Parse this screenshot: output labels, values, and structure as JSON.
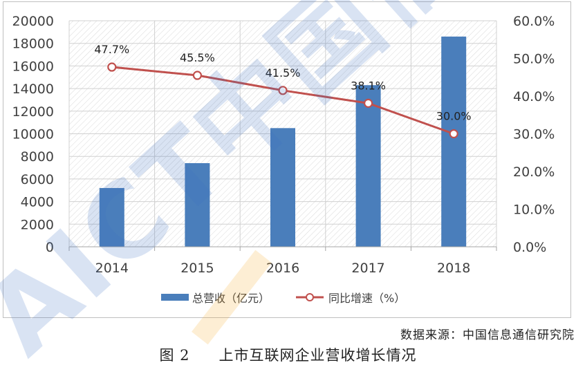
{
  "chart_data": {
    "type": "bar+line",
    "categories": [
      "2014",
      "2015",
      "2016",
      "2017",
      "2018"
    ],
    "series": [
      {
        "name": "总营收（亿元）",
        "type": "bar",
        "axis": "left",
        "values": [
          5200,
          7400,
          10500,
          14300,
          18600
        ]
      },
      {
        "name": "同比增速（%）",
        "type": "line",
        "axis": "right",
        "values": [
          47.7,
          45.5,
          41.5,
          38.1,
          30.0
        ],
        "labels": [
          "47.7%",
          "45.5%",
          "41.5%",
          "38.1%",
          "30.0%"
        ]
      }
    ],
    "y_left": {
      "min": 0,
      "max": 20000,
      "step": 2000,
      "ticks": [
        "0",
        "2000",
        "4000",
        "6000",
        "8000",
        "10000",
        "12000",
        "14000",
        "16000",
        "18000",
        "20000"
      ]
    },
    "y_right": {
      "min": 0,
      "max": 60,
      "step": 10,
      "ticks": [
        "0.0%",
        "10.0%",
        "20.0%",
        "30.0%",
        "40.0%",
        "50.0%",
        "60.0%"
      ]
    },
    "legend_position": "bottom-center",
    "grid": true,
    "colors": {
      "bar": "#4a7ebb",
      "line": "#c0504d",
      "watermark_blue": "#3b6fc0",
      "watermark_orange": "#f5a623"
    }
  },
  "watermark": "AICT中国信通院",
  "source_note": "数据来源：中国信息通信研究院",
  "caption": {
    "number": "图 2",
    "title": "上市互联网企业营收增长情况"
  }
}
